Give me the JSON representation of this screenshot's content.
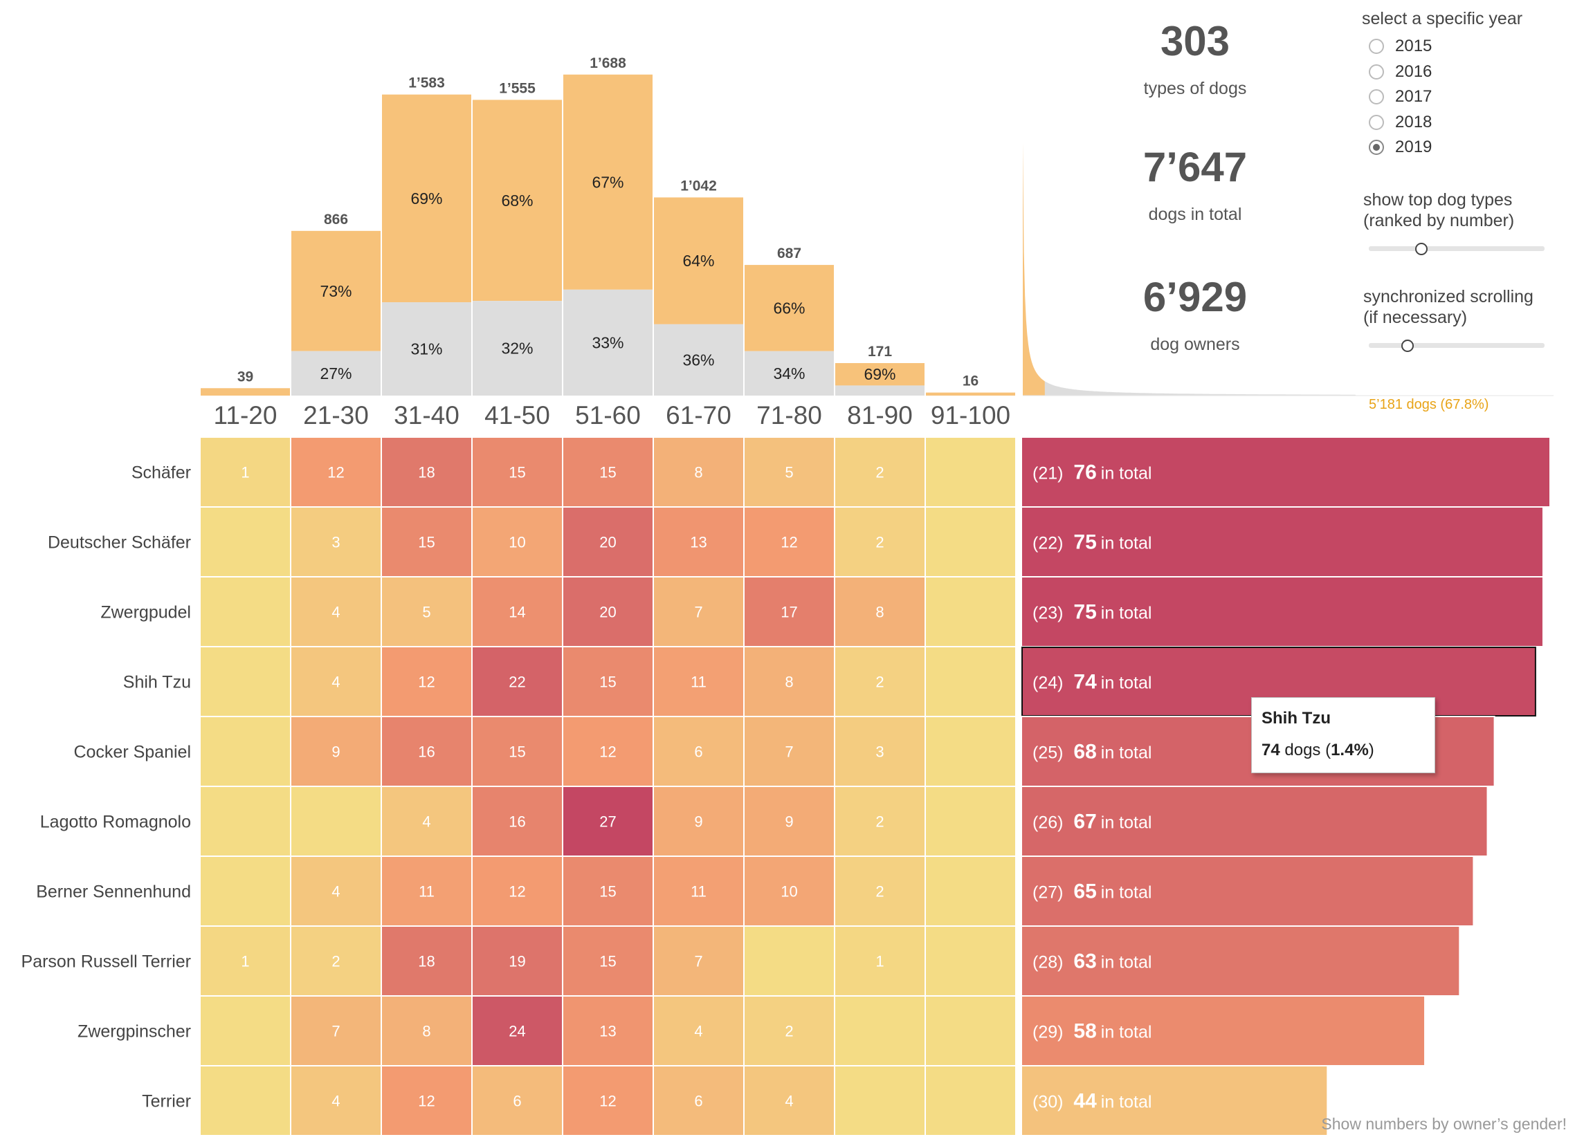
{
  "stats": [
    {
      "value": "303",
      "label": "types of dogs"
    },
    {
      "value": "7’647",
      "label": "dogs in total"
    },
    {
      "value": "6’929",
      "label": "dog owners"
    }
  ],
  "year_selector": {
    "title": "select a specific year",
    "options": [
      "2015",
      "2016",
      "2017",
      "2018",
      "2019"
    ],
    "selected": "2019"
  },
  "top_types_control": {
    "title_line1": "show top dog types",
    "title_line2": "(ranked by number)",
    "level": 0.3
  },
  "scroll_control": {
    "title_line1": "synchronized scrolling",
    "title_line2": "(if necessary)",
    "level": 0.22
  },
  "summary_note": "5’181 dogs  (67.8%)",
  "footer_link": "Show numbers by owner’s gender!",
  "tooltip": {
    "title": "Shih Tzu",
    "count": "74",
    "unit": " dogs (",
    "pct": "1.4%",
    "close": ")"
  },
  "colors": {
    "orange": "#f7c27a",
    "grey": "#dddddd",
    "heat_low": "#f4dc85",
    "heat_mid": "#f39a71",
    "heat_high": "#c44763"
  },
  "chart_data": [
    {
      "type": "bar",
      "categories": [
        "11-20",
        "21-30",
        "31-40",
        "41-50",
        "51-60",
        "61-70",
        "71-80",
        "81-90",
        "91-100"
      ],
      "totals": [
        39,
        866,
        1583,
        1555,
        1688,
        1042,
        687,
        171,
        16
      ],
      "total_labels": [
        "39",
        "866",
        "1’583",
        "1’555",
        "1’688",
        "1’042",
        "687",
        "171",
        "16"
      ],
      "series": [
        {
          "values_pct": [
            null,
            73,
            69,
            68,
            67,
            64,
            66,
            69,
            null
          ],
          "color": "#f7c27a"
        },
        {
          "values_pct": [
            null,
            27,
            31,
            32,
            33,
            36,
            34,
            null,
            null
          ],
          "color": "#dddddd"
        }
      ],
      "pct_labels_top": [
        "",
        "73%",
        "69%",
        "68%",
        "67%",
        "64%",
        "66%",
        "69%",
        ""
      ],
      "pct_labels_bottom": [
        "",
        "27%",
        "31%",
        "32%",
        "33%",
        "36%",
        "34%",
        "",
        ""
      ],
      "ylim": [
        0,
        1840
      ]
    },
    {
      "type": "area",
      "description_series": "dog types ranked by number",
      "highlight_count": 21,
      "n_types": 303
    },
    {
      "type": "heatmap",
      "columns": [
        "11-20",
        "21-30",
        "31-40",
        "41-50",
        "51-60",
        "61-70",
        "71-80",
        "81-90",
        "91-100"
      ],
      "rows": [
        {
          "name": "Schäfer",
          "rank": 21,
          "total": 76,
          "values": [
            1,
            12,
            18,
            15,
            15,
            8,
            5,
            2,
            null
          ]
        },
        {
          "name": "Deutscher Schäfer",
          "rank": 22,
          "total": 75,
          "values": [
            null,
            3,
            15,
            10,
            20,
            13,
            12,
            2,
            null
          ]
        },
        {
          "name": "Zwergpudel",
          "rank": 23,
          "total": 75,
          "values": [
            null,
            4,
            5,
            14,
            20,
            7,
            17,
            8,
            null
          ]
        },
        {
          "name": "Shih Tzu",
          "rank": 24,
          "total": 74,
          "values": [
            null,
            4,
            12,
            22,
            15,
            11,
            8,
            2,
            null
          ]
        },
        {
          "name": "Cocker Spaniel",
          "rank": 25,
          "total": 68,
          "values": [
            null,
            9,
            16,
            15,
            12,
            6,
            7,
            3,
            null
          ]
        },
        {
          "name": "Lagotto Romagnolo",
          "rank": 26,
          "total": 67,
          "values": [
            null,
            null,
            4,
            16,
            27,
            9,
            9,
            2,
            null
          ]
        },
        {
          "name": "Berner Sennenhund",
          "rank": 27,
          "total": 65,
          "values": [
            null,
            4,
            11,
            12,
            15,
            11,
            10,
            2,
            null
          ]
        },
        {
          "name": "Parson Russell Terrier",
          "rank": 28,
          "total": 63,
          "values": [
            1,
            2,
            18,
            19,
            15,
            7,
            null,
            1,
            null
          ]
        },
        {
          "name": "Zwergpinscher",
          "rank": 29,
          "total": 58,
          "values": [
            null,
            7,
            8,
            24,
            13,
            4,
            2,
            null,
            null
          ]
        },
        {
          "name": "Terrier",
          "rank": 30,
          "total": 44,
          "values": [
            null,
            4,
            12,
            6,
            12,
            6,
            4,
            null,
            null
          ]
        }
      ],
      "total_suffix": "in total",
      "selected_row": "Shih Tzu"
    }
  ]
}
